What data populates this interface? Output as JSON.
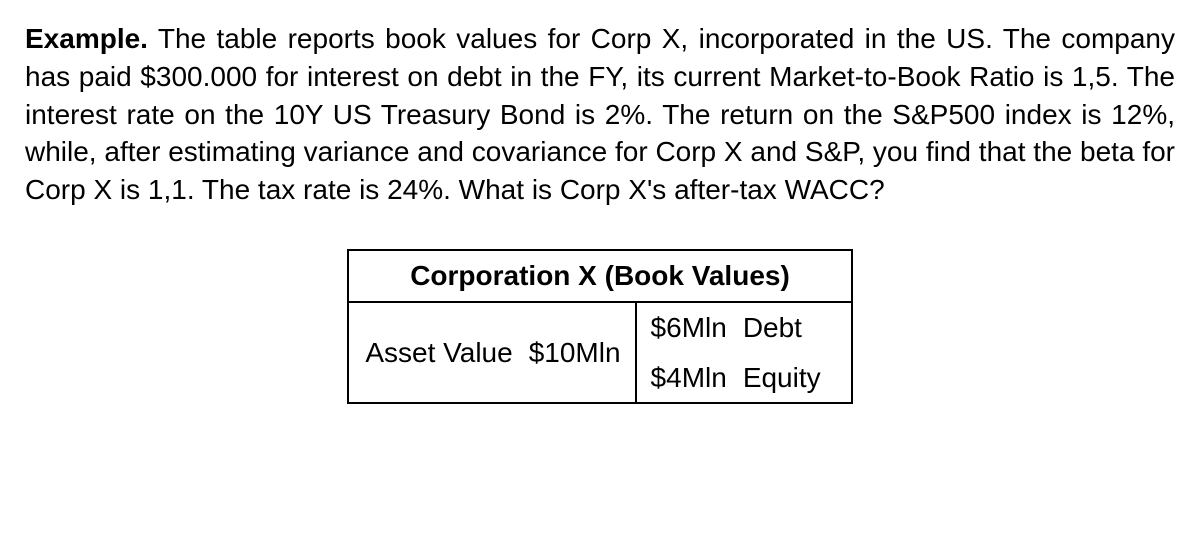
{
  "paragraph": {
    "lead": "Example.",
    "body": " The table reports book values for Corp X, incorporated in the US. The company has paid $300.000 for interest on debt in the FY, its current Market-to-Book Ratio is 1,5. The interest rate on the 10Y US Treasury Bond is 2%. The return on the S&P500 index is 12%, while, after estimating variance and covariance for Corp X and S&P, you find that the beta for Corp X is 1,1. The tax rate is 24%. What is Corp X's after-tax WACC?"
  },
  "table": {
    "title": "Corporation X (Book Values)",
    "asset_label": "Asset Value",
    "asset_value": "$10Mln",
    "rows": [
      {
        "amount": "$6Mln",
        "label": "Debt"
      },
      {
        "amount": "$4Mln",
        "label": "Equity"
      }
    ]
  }
}
